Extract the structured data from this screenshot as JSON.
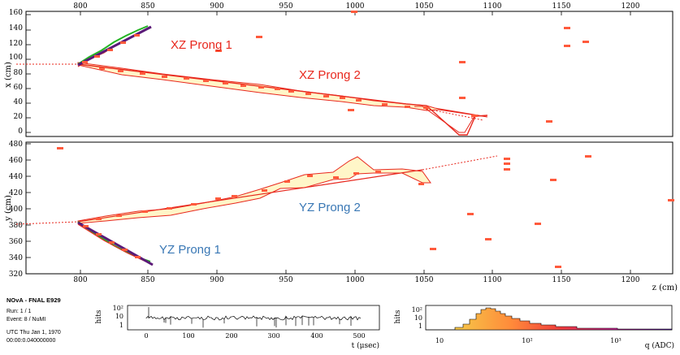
{
  "xz_view": {
    "y_axis_label": "x (cm)",
    "y_ticks": [
      "160",
      "140",
      "120",
      "100",
      "80",
      "60",
      "40",
      "20",
      "0"
    ],
    "top_ticks": [
      "800",
      "850",
      "900",
      "950",
      "1000",
      "1050",
      "1100",
      "1150",
      "1200"
    ],
    "prong_1_label": "XZ Prong 1",
    "prong_2_label": "XZ Prong 2"
  },
  "yz_view": {
    "y_axis_label": "y (cm)",
    "y_ticks": [
      "480",
      "460",
      "440",
      "420",
      "400",
      "380",
      "360",
      "340",
      "320"
    ],
    "bottom_ticks": [
      "800",
      "850",
      "900",
      "950",
      "1000",
      "1050",
      "1100",
      "1150",
      "1200"
    ],
    "x_axis_label": "z (cm)",
    "prong_1_label": "YZ Prong 1",
    "prong_2_label": "YZ Prong 2"
  },
  "event_info": {
    "title": "NOvA - FNAL E929",
    "run": "Run:  1 / 1",
    "event": "Event: 8 / NuMI",
    "time_line_1": "UTC Thu Jan 1, 1970",
    "time_line_2": "00:00:0.040000000"
  },
  "time_hist": {
    "y_label": "hits",
    "y_ticks": [
      "10²",
      "10",
      "1"
    ],
    "x_ticks": [
      "0",
      "100",
      "200",
      "300",
      "400",
      "500"
    ],
    "x_label": "t (μsec)"
  },
  "charge_hist": {
    "y_label": "hits",
    "y_ticks": [
      "10²",
      "10",
      "1"
    ],
    "x_ticks": [
      "10",
      "10²",
      "10³"
    ],
    "x_label": "q (ADC)"
  },
  "colors": {
    "prong_label_red": "#e8281e",
    "prong_label_blue": "#3a78b5",
    "track_red": "#e8281e",
    "track_green": "#22b422",
    "track_purple": "#5a1a78",
    "hit_fill": "#ff5a3c",
    "envelope_fill": "#fff6c8"
  }
}
